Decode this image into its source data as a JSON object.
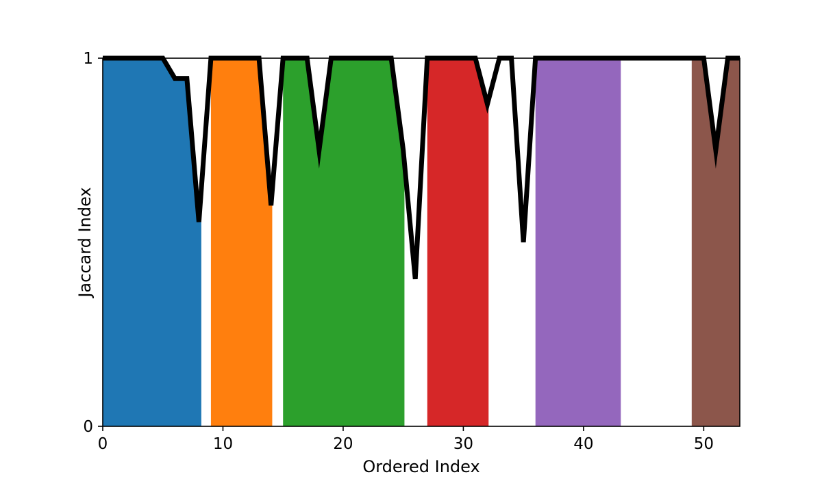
{
  "chart_data": {
    "type": "area",
    "title": "",
    "xlabel": "Ordered Index",
    "ylabel": "Jaccard Index",
    "xlim": [
      0,
      53
    ],
    "ylim": [
      0,
      1
    ],
    "x_ticks": [
      0,
      10,
      20,
      30,
      40,
      50
    ],
    "y_ticks": [
      0,
      1
    ],
    "grid": false,
    "clusters": [
      {
        "x_start": 0,
        "x_end": 8.2,
        "color": "#1f77b4"
      },
      {
        "x_start": 9,
        "x_end": 14.1,
        "color": "#ff7f0e"
      },
      {
        "x_start": 15,
        "x_end": 25.1,
        "color": "#2ca02c"
      },
      {
        "x_start": 27,
        "x_end": 32.1,
        "color": "#d62728"
      },
      {
        "x_start": 36,
        "x_end": 43.1,
        "color": "#9467bd"
      },
      {
        "x_start": 49,
        "x_end": 53,
        "color": "#8c564b"
      }
    ],
    "series": [
      {
        "color": "#000000",
        "x": [
          0,
          1,
          2,
          3,
          4,
          5,
          6,
          7,
          8,
          9,
          10,
          11,
          12,
          13,
          14,
          15,
          16,
          17,
          18,
          19,
          20,
          21,
          22,
          23,
          24,
          25,
          26,
          27,
          28,
          29,
          30,
          31,
          32,
          33,
          34,
          35,
          36,
          37,
          38,
          39,
          40,
          41,
          42,
          43,
          44,
          45,
          46,
          47,
          48,
          49,
          50,
          51,
          52,
          53
        ],
        "y": [
          1,
          1,
          1,
          1,
          1,
          1,
          0.945,
          0.945,
          0.555,
          1,
          1,
          1,
          1,
          1,
          0.6,
          1,
          1,
          1,
          0.75,
          1,
          1,
          1,
          1,
          1,
          1,
          0.75,
          0.4,
          1,
          1,
          1,
          1,
          1,
          0.875,
          1,
          1,
          0.5,
          1,
          1,
          1,
          1,
          1,
          1,
          1,
          1,
          1,
          1,
          1,
          1,
          1,
          1,
          1,
          0.75,
          1,
          1
        ]
      }
    ]
  }
}
